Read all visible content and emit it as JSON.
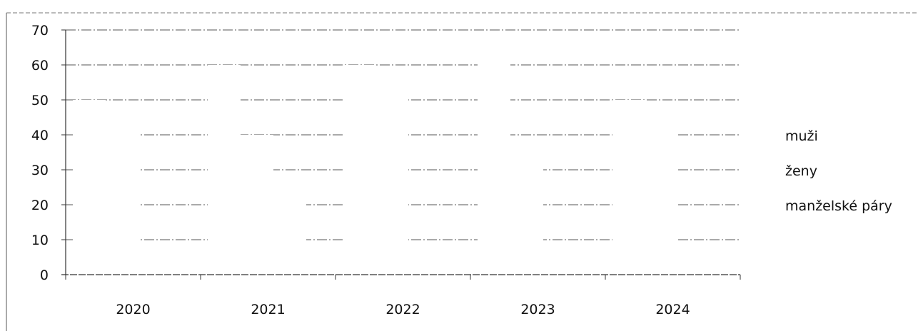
{
  "chart_data": {
    "type": "bar",
    "title": "",
    "xlabel": "",
    "ylabel": "",
    "categories": [
      "2020",
      "2021",
      "2022",
      "2023",
      "2024"
    ],
    "series": [
      {
        "name": "muži",
        "values": [
          50,
          60,
          60,
          62,
          50
        ],
        "color": "#ffffff"
      },
      {
        "name": "ženy",
        "values": [
          45,
          40,
          58,
          35,
          43
        ],
        "color": "#ffffff"
      },
      {
        "name": "manželské páry",
        "values": [
          0,
          27,
          5,
          7,
          3
        ],
        "color": "#ffffff"
      }
    ],
    "ylim": [
      0,
      70
    ],
    "yticks": [
      "0",
      "10",
      "20",
      "30",
      "40",
      "50",
      "60",
      "70"
    ],
    "grid": true,
    "legend_placement": "right",
    "colors": {
      "grid": "#555555",
      "axis": "#333333",
      "text": "#111111"
    }
  }
}
